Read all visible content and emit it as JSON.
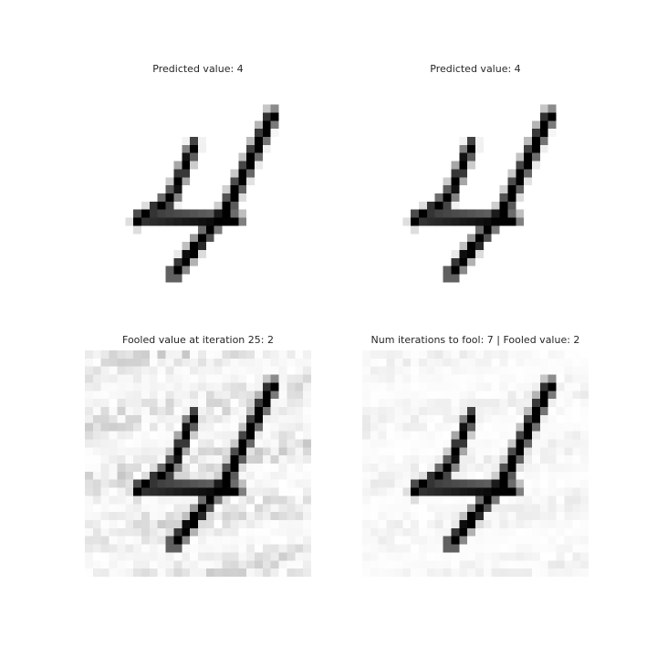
{
  "panels": [
    {
      "title": "Predicted value: 4"
    },
    {
      "title": "Predicted value: 4"
    },
    {
      "title": "Fooled value at iteration 25: 2"
    },
    {
      "title": "Num iterations to fool: 7 | Fooled value: 2"
    }
  ]
}
